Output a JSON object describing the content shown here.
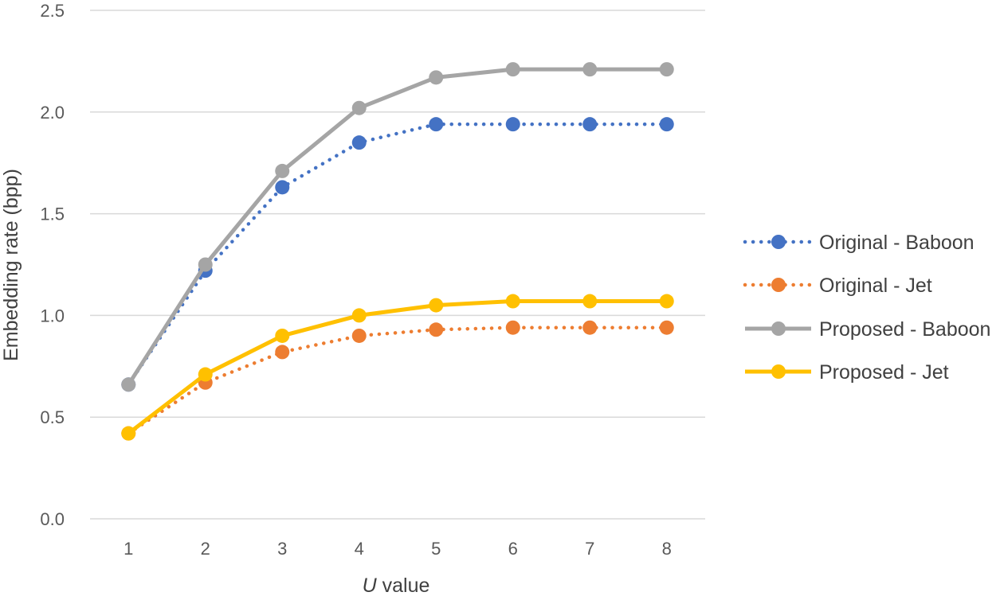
{
  "chart_data": {
    "type": "line",
    "title": "",
    "xlabel_italic": "U",
    "xlabel_rest": " value",
    "ylabel": "Embedding rate (bpp)",
    "ylim": [
      0,
      2.5
    ],
    "yticks": [
      "0.0",
      "0.5",
      "1.0",
      "1.5",
      "2.0",
      "2.5"
    ],
    "ytick_values": [
      0,
      0.5,
      1.0,
      1.5,
      2.0,
      2.5
    ],
    "categories": [
      "1",
      "2",
      "3",
      "4",
      "5",
      "6",
      "7",
      "8"
    ],
    "grid": "horizontal",
    "legend_position": "right",
    "series": [
      {
        "name": "Original - Baboon",
        "color": "#4472C4",
        "style": "dotted",
        "values": [
          0.66,
          1.22,
          1.63,
          1.85,
          1.94,
          1.94,
          1.94,
          1.94
        ]
      },
      {
        "name": "Original - Jet",
        "color": "#ED7D31",
        "style": "dotted",
        "values": [
          0.42,
          0.67,
          0.82,
          0.9,
          0.93,
          0.94,
          0.94,
          0.94
        ]
      },
      {
        "name": "Proposed - Baboon",
        "color": "#A5A5A5",
        "style": "solid",
        "values": [
          0.66,
          1.25,
          1.71,
          2.02,
          2.17,
          2.21,
          2.21,
          2.21
        ]
      },
      {
        "name": "Proposed - Jet",
        "color": "#FFC000",
        "style": "solid",
        "values": [
          0.42,
          0.71,
          0.9,
          1.0,
          1.05,
          1.07,
          1.07,
          1.07
        ]
      }
    ]
  }
}
